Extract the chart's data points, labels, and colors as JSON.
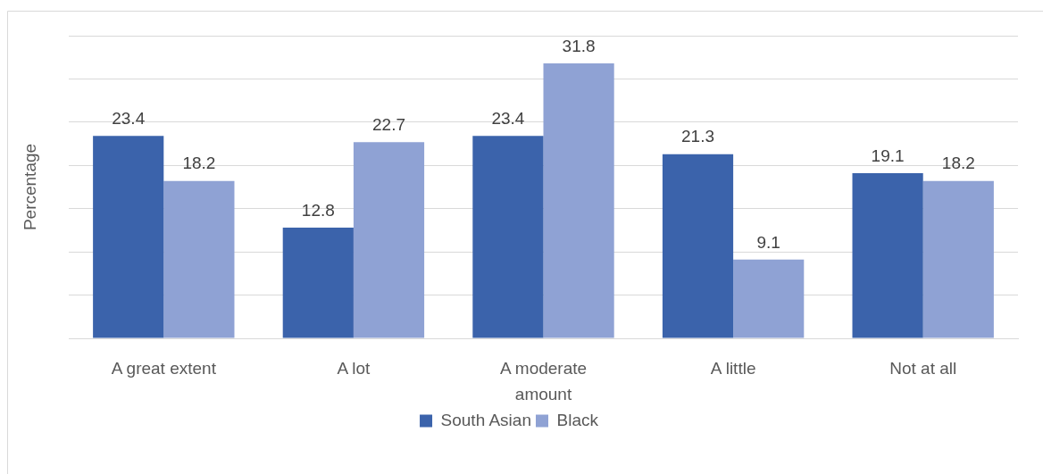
{
  "chart_data": {
    "type": "bar",
    "categories": [
      "A great extent",
      "A lot",
      "A moderate amount",
      "A little",
      "Not at all"
    ],
    "series": [
      {
        "name": "South Asian",
        "color": "#3b63ab",
        "values": [
          23.4,
          12.8,
          23.4,
          21.3,
          19.1
        ]
      },
      {
        "name": "Black",
        "color": "#8fa2d4",
        "values": [
          18.2,
          22.7,
          31.8,
          9.1,
          18.2
        ]
      }
    ],
    "ylabel": "Percentage",
    "ylim": [
      0,
      35
    ],
    "yticks": [
      {
        "value": 0,
        "label": null
      },
      {
        "value": 5,
        "label": null
      },
      {
        "value": 10,
        "label": null
      },
      {
        "value": 15,
        "label": null
      },
      {
        "value": 20,
        "label": null
      },
      {
        "value": 25,
        "label": null
      },
      {
        "value": 30,
        "label": null
      },
      {
        "value": 35,
        "label": null
      }
    ],
    "tick_labels": "x",
    "grid": "y",
    "legend": "bottom",
    "data_labels": true
  }
}
